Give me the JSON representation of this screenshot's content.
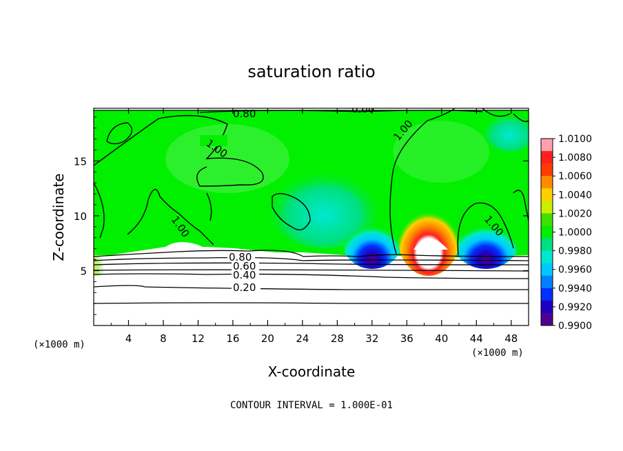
{
  "chart_data": {
    "type": "heatmap",
    "title": "saturation ratio",
    "xlabel": "X-coordinate",
    "ylabel": "Z-coordinate",
    "x_unit": "(×1000 m)",
    "y_unit": "(×1000 m)",
    "xlim": [
      0,
      50
    ],
    "ylim": [
      0,
      19.8
    ],
    "x_ticks": [
      "4",
      "8",
      "12",
      "16",
      "20",
      "24",
      "28",
      "32",
      "36",
      "40",
      "44",
      "48"
    ],
    "y_ticks": [
      "5",
      "10",
      "15"
    ],
    "colorbar": {
      "labels": [
        "1.0100",
        "1.0080",
        "1.0060",
        "1.0040",
        "1.0020",
        "1.0000",
        "0.9980",
        "0.9960",
        "0.9940",
        "0.9920",
        "0.9900"
      ],
      "colors": [
        "#ff9fb0",
        "#ff2020",
        "#ff3c00",
        "#ff8c00",
        "#ffd000",
        "#c8f000",
        "#40e000",
        "#00f000",
        "#00e080",
        "#00e8d0",
        "#00c8ff",
        "#0080ff",
        "#0030ff",
        "#2000c0",
        "#500090"
      ]
    },
    "contour_labels": [
      "1.00",
      "1.00",
      "1.00",
      "1.00",
      "0.80",
      "0.60",
      "0.40",
      "0.20",
      "0.80",
      "0.60"
    ],
    "note": "CONTOUR INTERVAL = 1.000E-01"
  }
}
